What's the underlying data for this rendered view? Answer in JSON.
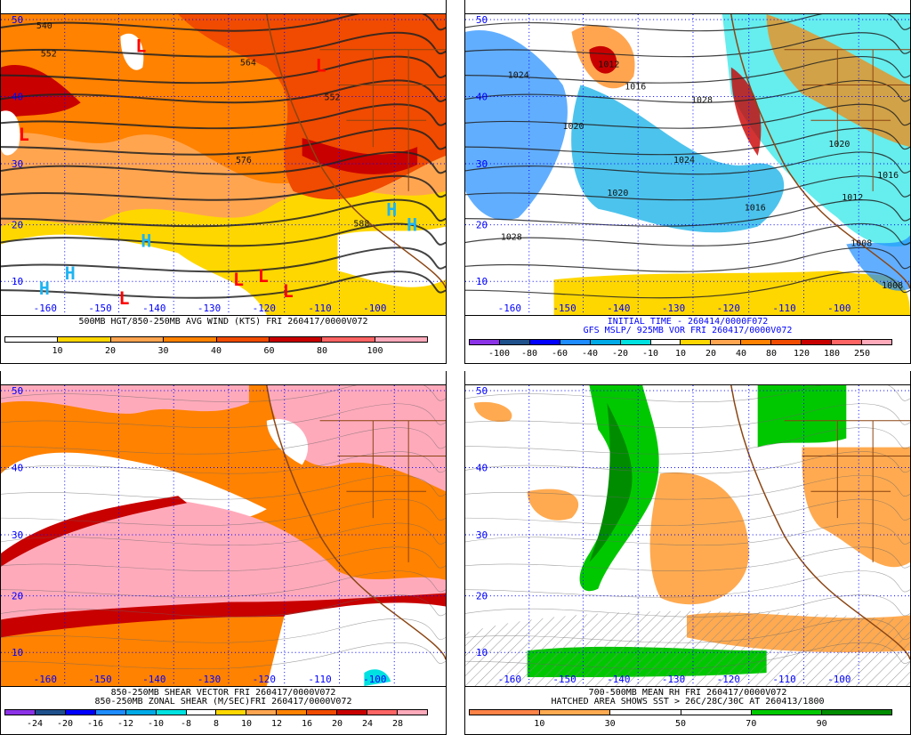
{
  "grid": {
    "lat_labels": [
      "50",
      "40",
      "30",
      "20",
      "10"
    ],
    "lon_labels": [
      "-160",
      "-150",
      "-140",
      "-130",
      "-120",
      "-110",
      "-100"
    ]
  },
  "panels": [
    {
      "id": "wind",
      "captions": [
        "500MB HGT/850-250MB AVG WIND (KTS) FRI 260417/0000V072"
      ],
      "caption_color": "#000000",
      "contour_labels": [
        "540",
        "552",
        "564",
        "552",
        "576",
        "588"
      ],
      "pressure_centers": [
        {
          "t": "L",
          "c": "#ff0000"
        },
        {
          "t": "L",
          "c": "#ff0000"
        },
        {
          "t": "L",
          "c": "#ff0000"
        },
        {
          "t": "L",
          "c": "#ff0000"
        },
        {
          "t": "L",
          "c": "#ff0000"
        },
        {
          "t": "L",
          "c": "#ff0000"
        },
        {
          "t": "L",
          "c": "#ff0000"
        },
        {
          "t": "H",
          "c": "#1eb4f0"
        },
        {
          "t": "H",
          "c": "#1eb4f0"
        },
        {
          "t": "H",
          "c": "#1eb4f0"
        },
        {
          "t": "H",
          "c": "#1eb4f0"
        },
        {
          "t": "H",
          "c": "#1eb4f0"
        }
      ],
      "colorbar": {
        "colors": [
          "#ffffff",
          "#ffd700",
          "#ffa550",
          "#ff8200",
          "#f04b00",
          "#c80000",
          "#ff6464",
          "#ffaabb"
        ],
        "labels": [
          "10",
          "20",
          "30",
          "40",
          "60",
          "80",
          "100"
        ]
      }
    },
    {
      "id": "mslp",
      "captions": [
        "INITIAL TIME - 260414/0000F072",
        "GFS MSLP/ 925MB VOR FRI 260417/0000V072"
      ],
      "caption_color": "#0000ff",
      "contour_labels": [
        "1012",
        "1016",
        "1028",
        "1024",
        "1020",
        "1028",
        "1024",
        "1020",
        "1016",
        "1008",
        "1008",
        "1020",
        "1016",
        "1012"
      ],
      "colorbar": {
        "colors": [
          "#8c32e6",
          "#1e508c",
          "#0000ff",
          "#1e8cff",
          "#00aae6",
          "#00e1e1",
          "#ffffff",
          "#ffd700",
          "#ffa550",
          "#ff8200",
          "#f04b00",
          "#c80000",
          "#ff6464",
          "#ffaabb"
        ],
        "labels": [
          "-100",
          "-80",
          "-60",
          "-40",
          "-20",
          "-10",
          "10",
          "20",
          "40",
          "80",
          "120",
          "180",
          "250"
        ]
      }
    },
    {
      "id": "shear",
      "captions": [
        "850-250MB SHEAR VECTOR FRI 260417/0000V072",
        "850-250MB ZONAL SHEAR (M/SEC)FRI 260417/0000V072"
      ],
      "caption_color": "#000000",
      "colorbar": {
        "colors": [
          "#8c32e6",
          "#1e508c",
          "#0000ff",
          "#1e8cff",
          "#00aae6",
          "#00e1e1",
          "#ffffff",
          "#ffd700",
          "#ffa550",
          "#ff8200",
          "#f04b00",
          "#c80000",
          "#ff6464",
          "#ffaabb"
        ],
        "labels": [
          "-24",
          "-20",
          "-16",
          "-12",
          "-10",
          "-8",
          "8",
          "10",
          "12",
          "16",
          "20",
          "24",
          "28"
        ]
      }
    },
    {
      "id": "rh",
      "captions": [
        "700-500MB MEAN RH FRI 260417/0000V072",
        "HATCHED AREA SHOWS SST > 26C/28C/30C AT 260413/1800"
      ],
      "caption_color": "#000000",
      "colorbar": {
        "colors": [
          "#ff8246",
          "#ffaa50",
          "#ffffff",
          "#ffffff",
          "#00c800",
          "#008c00"
        ],
        "labels": [
          "10",
          "30",
          "50",
          "70",
          "90"
        ]
      }
    }
  ]
}
